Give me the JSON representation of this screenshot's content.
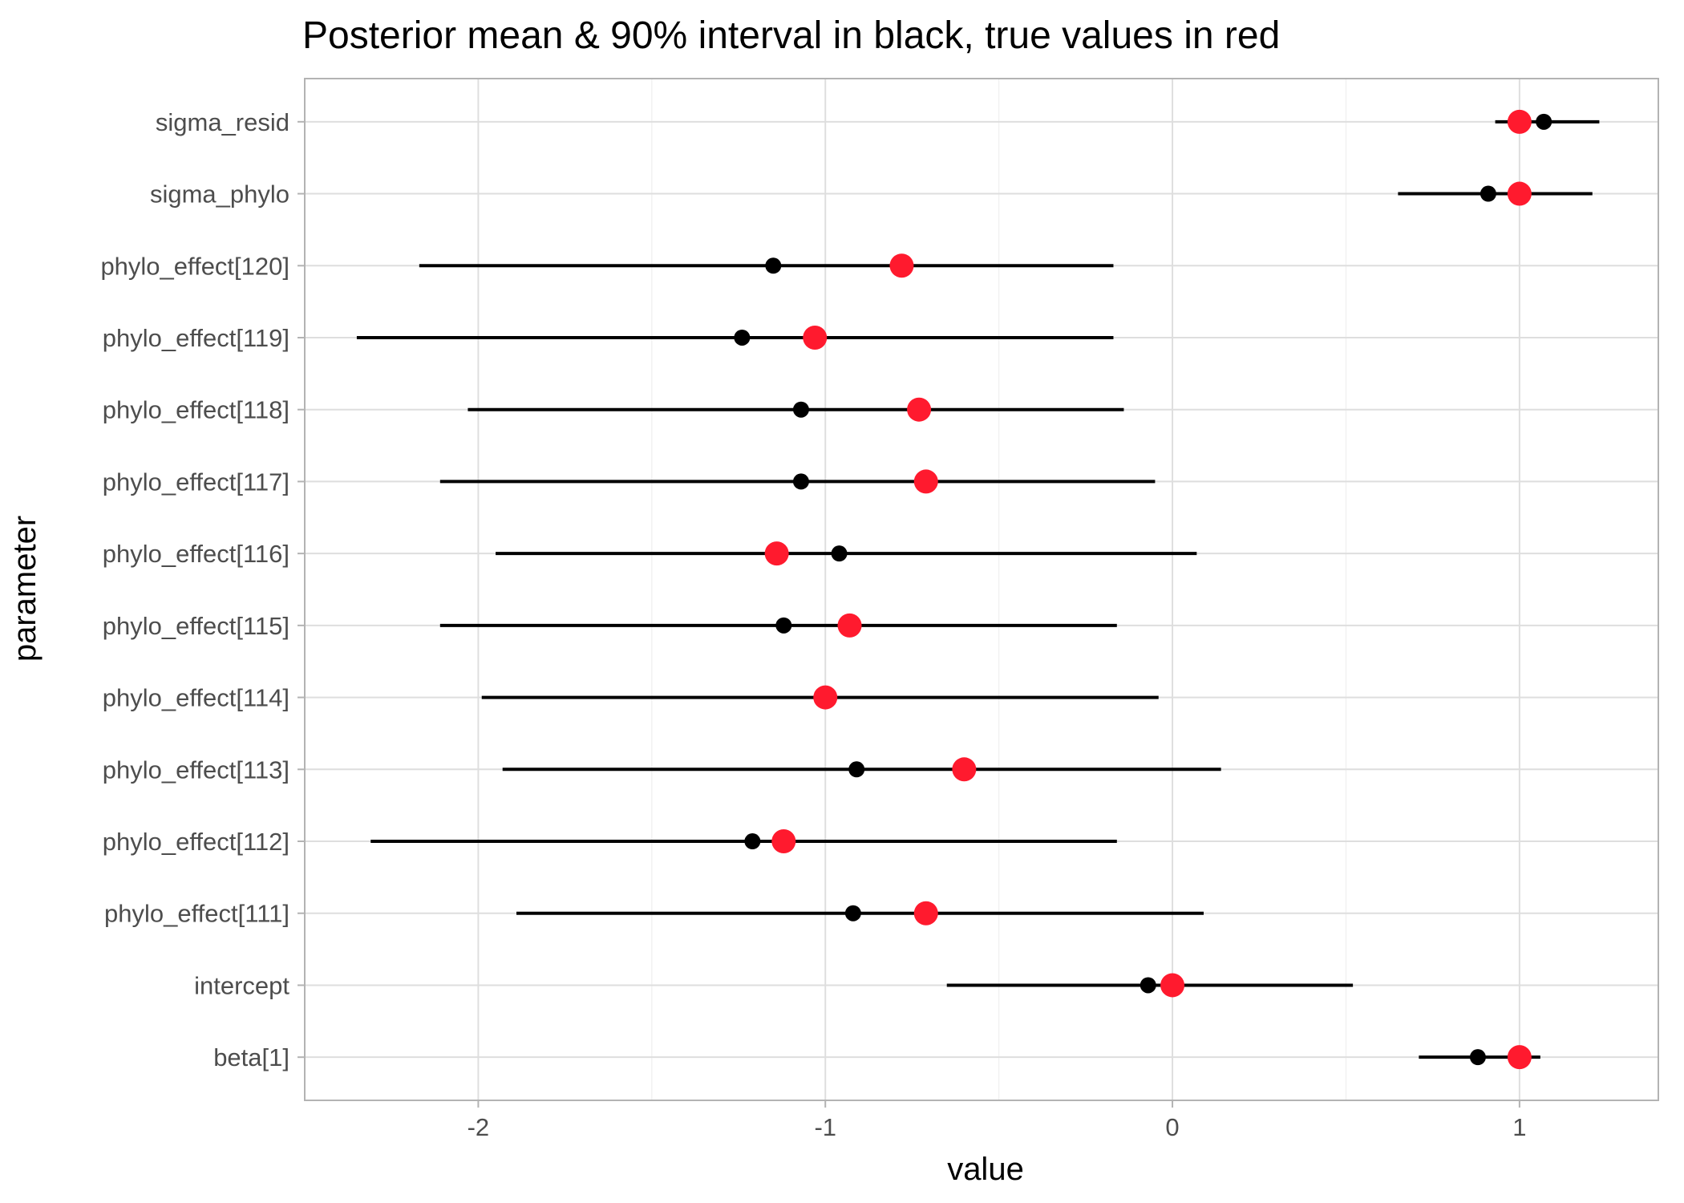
{
  "chart_data": {
    "type": "scatter",
    "title": "Posterior mean & 90% interval in black, true values in red",
    "xlabel": "value",
    "ylabel": "parameter",
    "xlim": [
      -2.5,
      1.4
    ],
    "x_ticks": [
      -2,
      -1,
      0,
      1
    ],
    "x_tick_labels": [
      "-2",
      "-1",
      "0",
      "1"
    ],
    "grid": true,
    "legend": "none",
    "colors": {
      "mean": "#000000",
      "true": "#ff1a2e"
    },
    "categories": [
      "sigma_resid",
      "sigma_phylo",
      "phylo_effect[120]",
      "phylo_effect[119]",
      "phylo_effect[118]",
      "phylo_effect[117]",
      "phylo_effect[116]",
      "phylo_effect[115]",
      "phylo_effect[114]",
      "phylo_effect[113]",
      "phylo_effect[112]",
      "phylo_effect[111]",
      "intercept",
      "beta[1]"
    ],
    "series": [
      {
        "values": [
          1.07,
          0.91,
          -1.15,
          -1.24,
          -1.07,
          -1.07,
          -0.96,
          -1.12,
          -1.0,
          -0.91,
          -1.21,
          -0.92,
          -0.07,
          0.88
        ]
      },
      {
        "values": [
          1.0,
          1.0,
          -0.78,
          -1.03,
          -0.73,
          -0.71,
          -1.14,
          -0.93,
          -1.0,
          -0.6,
          -1.12,
          -0.71,
          0.0,
          1.0
        ]
      }
    ],
    "intervals": [
      [
        0.93,
        1.23
      ],
      [
        0.65,
        1.21
      ],
      [
        -2.17,
        -0.17
      ],
      [
        -2.35,
        -0.17
      ],
      [
        -2.03,
        -0.14
      ],
      [
        -2.11,
        -0.05
      ],
      [
        -1.95,
        0.07
      ],
      [
        -2.11,
        -0.16
      ],
      [
        -1.99,
        -0.04
      ],
      [
        -1.93,
        0.14
      ],
      [
        -2.31,
        -0.16
      ],
      [
        -1.89,
        0.09
      ],
      [
        -0.65,
        0.52
      ],
      [
        0.71,
        1.06
      ]
    ]
  }
}
